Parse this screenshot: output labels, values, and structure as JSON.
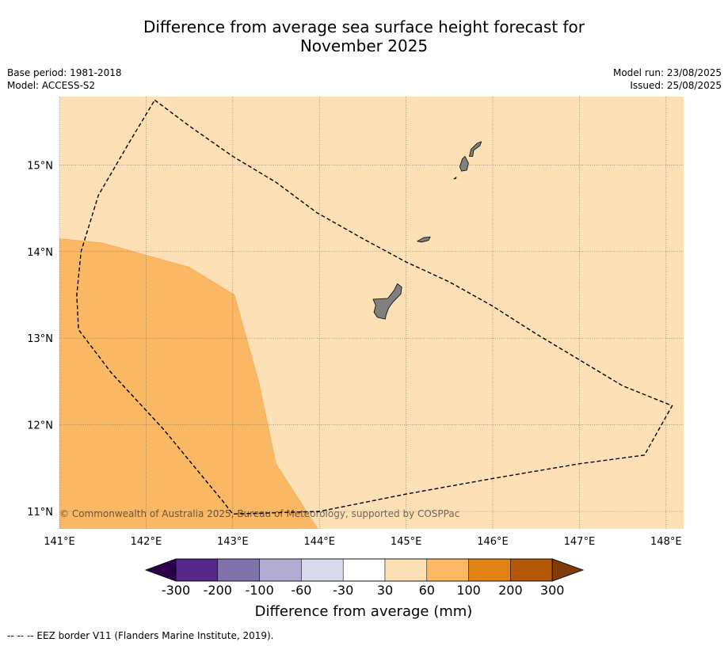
{
  "header": {
    "title_line1": "Difference from average sea surface height forecast for",
    "title_line2": "November 2025",
    "base_period": "Base period: 1981-2018",
    "model": "Model: ACCESS-S2",
    "model_run": "Model run: 23/08/2025",
    "issued": "Issued: 25/08/2025"
  },
  "map": {
    "copyright": "© Commonwealth of Australia 2025, Bureau of Meteorology, supported by COSPPac",
    "x_ticks": [
      "141°E",
      "142°E",
      "143°E",
      "144°E",
      "145°E",
      "146°E",
      "147°E",
      "148°E"
    ],
    "y_ticks": [
      "11°N",
      "12°N",
      "13°N",
      "14°N",
      "15°N"
    ]
  },
  "colorbar": {
    "label": "Difference from average (mm)",
    "ticks": [
      "-300",
      "-200",
      "-100",
      "-60",
      "-30",
      "30",
      "60",
      "100",
      "200",
      "300"
    ]
  },
  "footer": {
    "legend_text": "--  --  -- EEZ border V11 (Flanders Marine Institute, 2019)."
  },
  "colors": {
    "ocean_light": "#fde0b6",
    "ocean_medium": "#fab865",
    "land": "#808080",
    "colorbar": [
      "#2d004b",
      "#542788",
      "#8073ac",
      "#b2abd2",
      "#d8daeb",
      "#ffffff",
      "#fee0b6",
      "#fdb863",
      "#e08214",
      "#b35806",
      "#7f3b08"
    ]
  },
  "chart_data": {
    "type": "heatmap",
    "title": "Difference from average sea surface height forecast for November 2025",
    "xlabel": "",
    "ylabel": "",
    "xlim": [
      141,
      148.2
    ],
    "ylim": [
      10.8,
      15.8
    ],
    "units": "mm",
    "levels": [
      -300,
      -200,
      -100,
      -60,
      -30,
      30,
      60,
      100,
      200,
      300
    ],
    "colorbar_label": "Difference from average (mm)",
    "region_classes": [
      {
        "range": [
          30,
          60
        ],
        "description": "most of the map (north and east)"
      },
      {
        "range": [
          60,
          100
        ],
        "description": "south-west part of the map"
      }
    ],
    "range_60_100_boundary": [
      [
        141,
        14.15
      ],
      [
        141.5,
        14.1
      ],
      [
        142.5,
        13.82
      ],
      [
        143.02,
        13.5
      ],
      [
        143.3,
        12.5
      ],
      [
        143.5,
        11.55
      ],
      [
        143.98,
        10.8
      ]
    ],
    "eez_border": [
      [
        142.1,
        15.75
      ],
      [
        142.5,
        15.45
      ],
      [
        143.0,
        15.1
      ],
      [
        143.5,
        14.8
      ],
      [
        143.97,
        14.45
      ],
      [
        144.5,
        14.15
      ],
      [
        145.0,
        13.88
      ],
      [
        145.5,
        13.65
      ],
      [
        146.0,
        13.37
      ],
      [
        146.5,
        13.05
      ],
      [
        147.0,
        12.75
      ],
      [
        147.5,
        12.45
      ],
      [
        148.07,
        12.22
      ],
      [
        147.75,
        11.65
      ],
      [
        147.0,
        11.55
      ],
      [
        146.0,
        11.38
      ],
      [
        145.0,
        11.2
      ],
      [
        144.0,
        11.0
      ],
      [
        143.0,
        10.97
      ],
      [
        142.9,
        11.1
      ],
      [
        142.2,
        11.95
      ],
      [
        141.6,
        12.6
      ],
      [
        141.22,
        13.1
      ],
      [
        141.2,
        13.5
      ],
      [
        141.25,
        14.0
      ],
      [
        141.45,
        14.65
      ],
      [
        141.8,
        15.25
      ],
      [
        142.1,
        15.75
      ]
    ],
    "land": [
      {
        "name": "",
        "outline": [
          [
            144.62,
            13.45
          ],
          [
            144.79,
            13.46
          ],
          [
            144.86,
            13.55
          ],
          [
            144.9,
            13.63
          ],
          [
            144.95,
            13.59
          ],
          [
            144.94,
            13.51
          ],
          [
            144.85,
            13.42
          ],
          [
            144.8,
            13.35
          ],
          [
            144.77,
            13.27
          ],
          [
            144.76,
            13.22
          ],
          [
            144.67,
            13.24
          ],
          [
            144.63,
            13.3
          ],
          [
            144.65,
            13.38
          ],
          [
            144.62,
            13.45
          ]
        ]
      },
      {
        "name": "",
        "outline": [
          [
            145.13,
            14.12
          ],
          [
            145.2,
            14.16
          ],
          [
            145.28,
            14.17
          ],
          [
            145.26,
            14.13
          ],
          [
            145.18,
            14.11
          ],
          [
            145.13,
            14.12
          ]
        ]
      },
      {
        "name": "",
        "outline": [
          [
            145.62,
            14.98
          ],
          [
            145.65,
            15.07
          ],
          [
            145.68,
            15.1
          ],
          [
            145.72,
            15.02
          ],
          [
            145.7,
            14.94
          ],
          [
            145.64,
            14.93
          ],
          [
            145.62,
            14.98
          ]
        ]
      },
      {
        "name": "",
        "outline": [
          [
            145.73,
            15.1
          ],
          [
            145.75,
            15.18
          ],
          [
            145.82,
            15.25
          ],
          [
            145.87,
            15.27
          ],
          [
            145.85,
            15.22
          ],
          [
            145.78,
            15.17
          ],
          [
            145.77,
            15.1
          ],
          [
            145.73,
            15.1
          ]
        ]
      },
      {
        "name": "",
        "outline": [
          [
            145.55,
            14.84
          ],
          [
            145.58,
            14.86
          ],
          [
            145.57,
            14.84
          ],
          [
            145.55,
            14.84
          ]
        ]
      }
    ]
  }
}
